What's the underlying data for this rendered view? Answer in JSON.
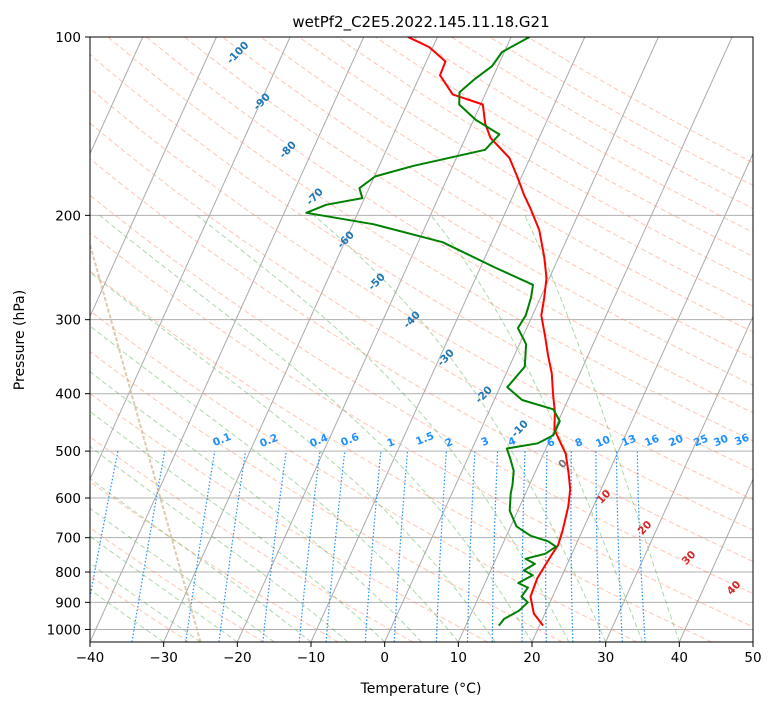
{
  "chart_data": {
    "type": "skew-t",
    "title": "wetPf2_C2E5.2022.145.11.18.G21",
    "xlabel": "Temperature (°C)",
    "ylabel": "Pressure (hPa)",
    "xlim": [
      -40,
      50
    ],
    "ylim": [
      1050,
      100
    ],
    "y_scale": "log",
    "x_ticks": [
      -40,
      -30,
      -20,
      -10,
      0,
      10,
      20,
      30,
      40,
      50
    ],
    "x_tick_labels": [
      "−40",
      "−30",
      "−20",
      "−10",
      "0",
      "10",
      "20",
      "30",
      "40",
      "50"
    ],
    "y_ticks": [
      100,
      200,
      300,
      400,
      500,
      600,
      700,
      800,
      900,
      1000
    ],
    "y_tick_labels": [
      "100",
      "200",
      "300",
      "400",
      "500",
      "600",
      "700",
      "800",
      "900",
      "1000"
    ],
    "grid": true,
    "colors": {
      "temperature": "#ff0000",
      "dewpoint": "#008000",
      "dry_adiabat": "#ff7f50",
      "moist_adiabat": "#2ca02c",
      "mixing_ratio": "#1e90ff",
      "isotherm_labels": "#1f77b4",
      "isotherm_zero": "#777777",
      "isotherm_positive": "#d62728",
      "ice_curve": "#d2b48c"
    },
    "series": [
      {
        "name": "",
        "role": "temperature",
        "points": [
          [
            20.5,
            985
          ],
          [
            18.5,
            940
          ],
          [
            17,
            880
          ],
          [
            16.8,
            820
          ],
          [
            17.3,
            750
          ],
          [
            17.6,
            720
          ],
          [
            17.3,
            680
          ],
          [
            16.6,
            620
          ],
          [
            15.8,
            580
          ],
          [
            14.6,
            545
          ],
          [
            13,
            505
          ],
          [
            11.7,
            485
          ],
          [
            10,
            460
          ],
          [
            9,
            430
          ],
          [
            7.6,
            400
          ],
          [
            6.2,
            370
          ],
          [
            4.6,
            345
          ],
          [
            3,
            320
          ],
          [
            1.2,
            295
          ],
          [
            0.5,
            275
          ],
          [
            -0.4,
            255
          ],
          [
            -2,
            235
          ],
          [
            -4.3,
            212
          ],
          [
            -6.8,
            195
          ],
          [
            -8.5,
            185
          ],
          [
            -10.6,
            172
          ],
          [
            -12.8,
            160
          ],
          [
            -16.6,
            148
          ],
          [
            -18.2,
            140
          ],
          [
            -19.7,
            130
          ],
          [
            -24.4,
            125
          ],
          [
            -27.3,
            116
          ],
          [
            -27.4,
            110
          ],
          [
            -30.5,
            104
          ],
          [
            -34,
            100
          ]
        ]
      },
      {
        "name": "",
        "role": "dewpoint",
        "points": [
          [
            14.5,
            985
          ],
          [
            14.8,
            960
          ],
          [
            16.3,
            930
          ],
          [
            17,
            900
          ],
          [
            15.8,
            880
          ],
          [
            16.1,
            850
          ],
          [
            14.5,
            835
          ],
          [
            16,
            810
          ],
          [
            14.5,
            795
          ],
          [
            15.6,
            775
          ],
          [
            14,
            760
          ],
          [
            16.4,
            745
          ],
          [
            17.4,
            725
          ],
          [
            16,
            710
          ],
          [
            13.3,
            695
          ],
          [
            10.8,
            670
          ],
          [
            8.9,
            630
          ],
          [
            8,
            590
          ],
          [
            7.7,
            570
          ],
          [
            7,
            540
          ],
          [
            5.8,
            515
          ],
          [
            4.7,
            495
          ],
          [
            8.6,
            485
          ],
          [
            10.2,
            470
          ],
          [
            10.2,
            445
          ],
          [
            8.6,
            425
          ],
          [
            3.8,
            410
          ],
          [
            1,
            390
          ],
          [
            2.1,
            360
          ],
          [
            0.9,
            330
          ],
          [
            -1.2,
            310
          ],
          [
            -0.9,
            295
          ],
          [
            -1.3,
            275
          ],
          [
            -1.8,
            262
          ],
          [
            -8,
            245
          ],
          [
            -16.7,
            222
          ],
          [
            -27.2,
            207
          ],
          [
            -37,
            198
          ],
          [
            -34.8,
            192
          ],
          [
            -30.3,
            187
          ],
          [
            -31.3,
            180
          ],
          [
            -29.9,
            172
          ],
          [
            -25.3,
            165
          ],
          [
            -16.6,
            155
          ],
          [
            -15.6,
            146
          ],
          [
            -19.7,
            138
          ],
          [
            -22.9,
            130
          ],
          [
            -23.6,
            124
          ],
          [
            -22.4,
            118
          ],
          [
            -20.8,
            112
          ],
          [
            -20.3,
            106
          ],
          [
            -17.5,
            100
          ]
        ]
      }
    ],
    "isotherm_labels": [
      {
        "text": "-100",
        "value": -100
      },
      {
        "text": "-90",
        "value": -90
      },
      {
        "text": "-80",
        "value": -80
      },
      {
        "text": "-70",
        "value": -70
      },
      {
        "text": "-60",
        "value": -60
      },
      {
        "text": "-50",
        "value": -50
      },
      {
        "text": "-40",
        "value": -40
      },
      {
        "text": "-30",
        "value": -30
      },
      {
        "text": "-20",
        "value": -20
      },
      {
        "text": "-10",
        "value": -10
      },
      {
        "text": "0",
        "value": 0
      },
      {
        "text": "10",
        "value": 10
      },
      {
        "text": "20",
        "value": 20
      },
      {
        "text": "30",
        "value": 30
      },
      {
        "text": "40",
        "value": 40
      }
    ],
    "mixing_ratio_labels": [
      "0.1",
      "0.2",
      "0.4",
      "0.6",
      "1",
      "1.5",
      "2",
      "3",
      "4",
      "6",
      "8",
      "10",
      "13",
      "16",
      "20",
      "25",
      "30",
      "36"
    ],
    "mixing_ratio_values": [
      0.1,
      0.2,
      0.4,
      0.6,
      1,
      1.5,
      2,
      3,
      4,
      6,
      8,
      10,
      13,
      16,
      20,
      25,
      30,
      36
    ]
  }
}
